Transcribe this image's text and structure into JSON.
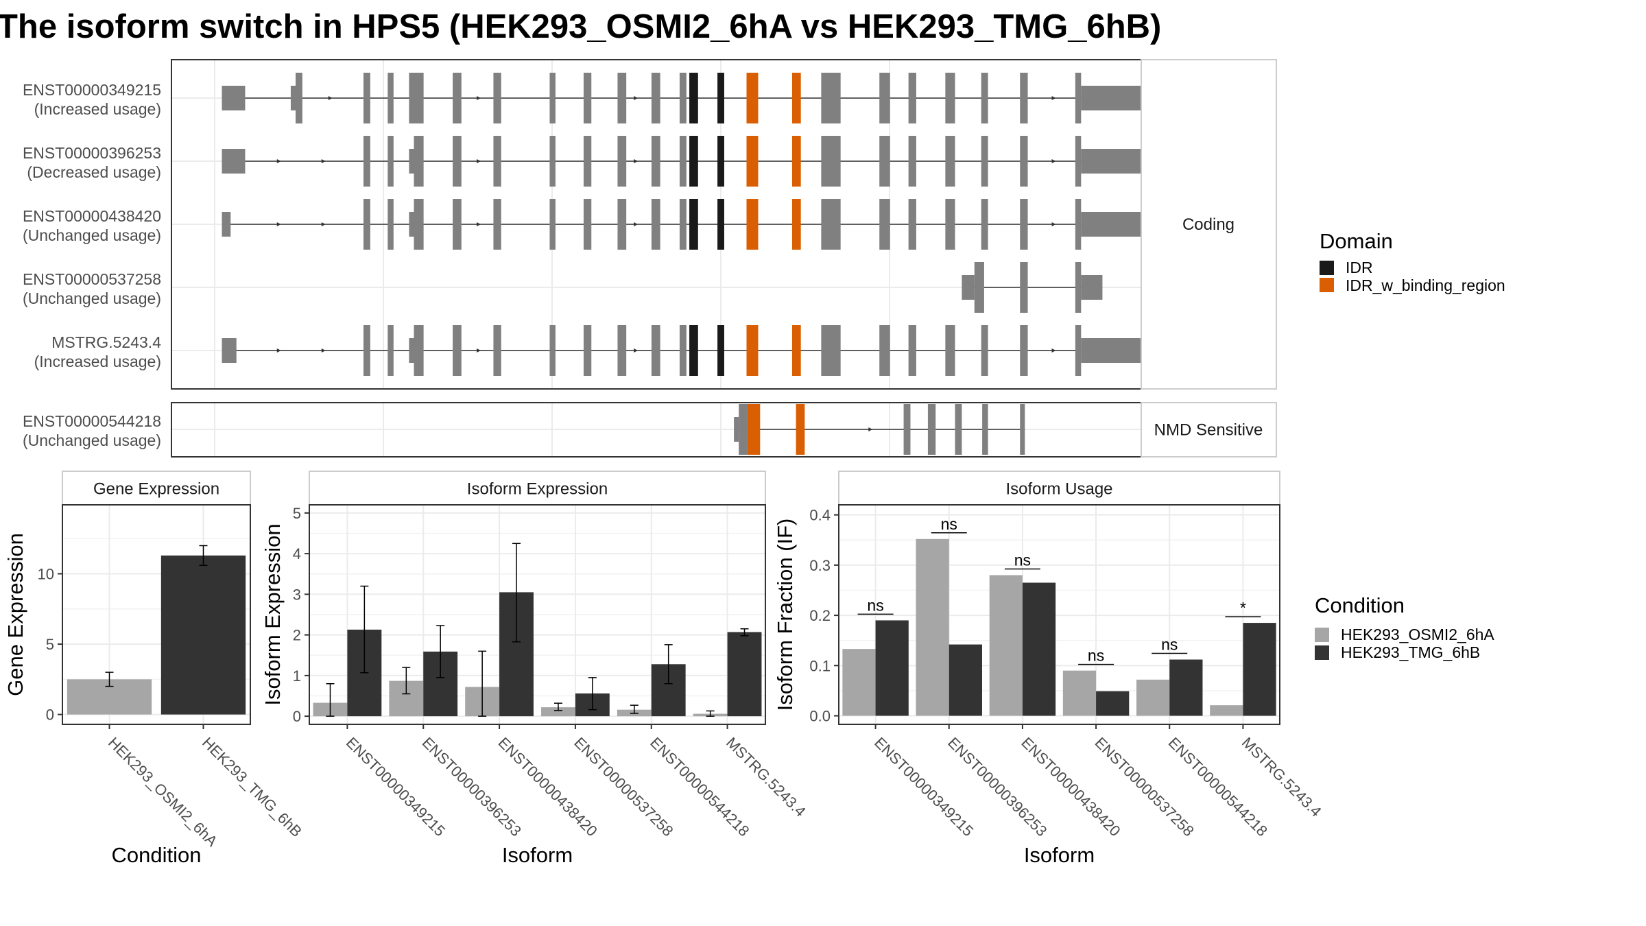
{
  "title": "The isoform switch in HPS5 (HEK293_OSMI2_6hA vs HEK293_TMG_6hB)",
  "colors": {
    "exon": "#808080",
    "IDR": "#1a1a1a",
    "IDR_w_binding_region": "#d95f02",
    "cond1": "#a6a6a6",
    "cond2": "#333333",
    "grid": "#ebebeb",
    "panel_border": "#333333"
  },
  "structure": {
    "xrange": [
      0,
      1000
    ],
    "groups": [
      {
        "label": "Coding",
        "transcripts": [
          {
            "id": "ENST00000349215",
            "status": "(Increased usage)",
            "span": [
              52,
              1026
            ],
            "exons": [
              [
                52,
                76,
                "u"
              ],
              [
                123,
                128,
                "u"
              ],
              [
                128,
                135,
                "c"
              ],
              [
                198,
                205,
                "c"
              ],
              [
                223,
                229,
                "c"
              ],
              [
                245,
                260,
                "c"
              ],
              [
                290,
                299,
                "c"
              ],
              [
                332,
                340,
                "c"
              ],
              [
                390,
                396,
                "c"
              ],
              [
                425,
                433,
                "c"
              ],
              [
                460,
                469,
                "c"
              ],
              [
                495,
                504,
                "c"
              ],
              [
                524,
                531,
                "c"
              ],
              [
                534,
                543,
                "IDR"
              ],
              [
                563,
                570,
                "IDR"
              ],
              [
                593,
                605,
                "IDR_w_binding_region"
              ],
              [
                640,
                649,
                "IDR_w_binding_region"
              ],
              [
                670,
                690,
                "c"
              ],
              [
                730,
                741,
                "c"
              ],
              [
                760,
                768,
                "c"
              ],
              [
                798,
                808,
                "c"
              ],
              [
                835,
                842,
                "c"
              ],
              [
                875,
                883,
                "c"
              ],
              [
                932,
                938,
                "c"
              ],
              [
                938,
                1026,
                "u"
              ]
            ],
            "arrows": [
              166,
              319,
              481,
              912
            ]
          },
          {
            "id": "ENST00000396253",
            "status": "(Decreased usage)",
            "span": [
              52,
              1028
            ],
            "exons": [
              [
                52,
                76,
                "u"
              ],
              [
                198,
                205,
                "c"
              ],
              [
                223,
                229,
                "c"
              ],
              [
                245,
                250,
                "u"
              ],
              [
                250,
                260,
                "c"
              ],
              [
                290,
                299,
                "c"
              ],
              [
                332,
                340,
                "c"
              ],
              [
                390,
                396,
                "c"
              ],
              [
                425,
                433,
                "c"
              ],
              [
                460,
                469,
                "c"
              ],
              [
                495,
                504,
                "c"
              ],
              [
                524,
                531,
                "c"
              ],
              [
                534,
                543,
                "IDR"
              ],
              [
                563,
                570,
                "IDR"
              ],
              [
                593,
                605,
                "IDR_w_binding_region"
              ],
              [
                640,
                649,
                "IDR_w_binding_region"
              ],
              [
                670,
                690,
                "c"
              ],
              [
                730,
                741,
                "c"
              ],
              [
                760,
                768,
                "c"
              ],
              [
                798,
                808,
                "c"
              ],
              [
                835,
                842,
                "c"
              ],
              [
                875,
                883,
                "c"
              ],
              [
                932,
                938,
                "c"
              ],
              [
                938,
                1028,
                "u"
              ]
            ],
            "arrows": [
              113,
              159,
              319,
              481,
              912
            ]
          },
          {
            "id": "ENST00000438420",
            "status": "(Unchanged usage)",
            "span": [
              52,
              1012
            ],
            "exons": [
              [
                52,
                61,
                "u"
              ],
              [
                198,
                205,
                "c"
              ],
              [
                223,
                229,
                "c"
              ],
              [
                245,
                250,
                "u"
              ],
              [
                250,
                260,
                "c"
              ],
              [
                290,
                299,
                "c"
              ],
              [
                332,
                340,
                "c"
              ],
              [
                390,
                396,
                "c"
              ],
              [
                425,
                433,
                "c"
              ],
              [
                460,
                469,
                "c"
              ],
              [
                495,
                504,
                "c"
              ],
              [
                524,
                531,
                "c"
              ],
              [
                534,
                543,
                "IDR"
              ],
              [
                563,
                570,
                "IDR"
              ],
              [
                593,
                605,
                "IDR_w_binding_region"
              ],
              [
                640,
                649,
                "IDR_w_binding_region"
              ],
              [
                670,
                690,
                "c"
              ],
              [
                730,
                741,
                "c"
              ],
              [
                760,
                768,
                "c"
              ],
              [
                798,
                808,
                "c"
              ],
              [
                835,
                842,
                "c"
              ],
              [
                875,
                883,
                "c"
              ],
              [
                932,
                938,
                "c"
              ],
              [
                938,
                1012,
                "u"
              ]
            ],
            "arrows": [
              113,
              159,
              319,
              481,
              912
            ]
          },
          {
            "id": "ENST00000537258",
            "status": "(Unchanged usage)",
            "span": [
              815,
              960
            ],
            "exons": [
              [
                815,
                828,
                "u"
              ],
              [
                828,
                838,
                "c"
              ],
              [
                875,
                883,
                "c"
              ],
              [
                932,
                938,
                "c"
              ],
              [
                938,
                960,
                "u"
              ]
            ],
            "arrows": []
          },
          {
            "id": "MSTRG.5243.4",
            "status": "(Increased usage)",
            "span": [
              52,
              1000
            ],
            "exons": [
              [
                52,
                67,
                "u"
              ],
              [
                198,
                205,
                "c"
              ],
              [
                223,
                229,
                "c"
              ],
              [
                245,
                250,
                "u"
              ],
              [
                250,
                260,
                "c"
              ],
              [
                290,
                299,
                "c"
              ],
              [
                332,
                340,
                "c"
              ],
              [
                390,
                396,
                "c"
              ],
              [
                425,
                433,
                "c"
              ],
              [
                460,
                469,
                "c"
              ],
              [
                495,
                504,
                "c"
              ],
              [
                524,
                531,
                "c"
              ],
              [
                534,
                543,
                "IDR"
              ],
              [
                563,
                570,
                "IDR"
              ],
              [
                593,
                605,
                "IDR_w_binding_region"
              ],
              [
                640,
                649,
                "IDR_w_binding_region"
              ],
              [
                670,
                690,
                "c"
              ],
              [
                730,
                741,
                "c"
              ],
              [
                760,
                768,
                "c"
              ],
              [
                798,
                808,
                "c"
              ],
              [
                835,
                842,
                "c"
              ],
              [
                875,
                883,
                "c"
              ],
              [
                932,
                938,
                "c"
              ],
              [
                938,
                1000,
                "u"
              ]
            ],
            "arrows": [
              113,
              159,
              319,
              481,
              912
            ]
          }
        ]
      },
      {
        "label": "NMD Sensitive",
        "transcripts": [
          {
            "id": "ENST00000544218",
            "status": "(Unchanged usage)",
            "span": [
              580,
              880
            ],
            "exons": [
              [
                580,
                585,
                "u"
              ],
              [
                585,
                594,
                "c"
              ],
              [
                594,
                607,
                "IDR_w_binding_region"
              ],
              [
                644,
                653,
                "IDR_w_binding_region"
              ],
              [
                755,
                762,
                "c"
              ],
              [
                780,
                788,
                "c"
              ],
              [
                808,
                815,
                "c"
              ],
              [
                836,
                842,
                "c"
              ],
              [
                875,
                880,
                "c"
              ]
            ],
            "arrows": [
              723
            ]
          }
        ]
      }
    ]
  },
  "legends": {
    "domain_title": "Domain",
    "domain_items": [
      "IDR",
      "IDR_w_binding_region"
    ],
    "condition_title": "Condition",
    "condition_items": [
      "HEK293_OSMI2_6hA",
      "HEK293_TMG_6hB"
    ]
  },
  "chart_data": [
    {
      "type": "bar",
      "title": "Gene Expression",
      "xlabel": "Condition",
      "ylabel": "Gene Expression",
      "categories": [
        "HEK293_OSMI2_6hA",
        "HEK293_TMG_6hB"
      ],
      "values": [
        2.5,
        11.3
      ],
      "error": [
        [
          2.0,
          3.0
        ],
        [
          10.6,
          12.0
        ]
      ],
      "ylim": [
        -0.7,
        14.9
      ],
      "yticks": [
        0,
        5,
        10
      ]
    },
    {
      "type": "bar",
      "title": "Isoform Expression",
      "xlabel": "Isoform",
      "ylabel": "Isoform Expression",
      "categories": [
        "ENST00000349215",
        "ENST00000396253",
        "ENST00000438420",
        "ENST00000537258",
        "ENST00000544218",
        "MSTRG.5243.4"
      ],
      "series": [
        {
          "name": "HEK293_OSMI2_6hA",
          "values": [
            0.33,
            0.87,
            0.72,
            0.22,
            0.16,
            0.06
          ],
          "error": [
            [
              0.0,
              0.8
            ],
            [
              0.55,
              1.2
            ],
            [
              0.0,
              1.6
            ],
            [
              0.14,
              0.32
            ],
            [
              0.07,
              0.27
            ],
            [
              0.0,
              0.13
            ]
          ]
        },
        {
          "name": "HEK293_TMG_6hB",
          "values": [
            2.13,
            1.59,
            3.05,
            0.56,
            1.28,
            2.07
          ],
          "error": [
            [
              1.07,
              3.2
            ],
            [
              0.95,
              2.23
            ],
            [
              1.83,
              4.25
            ],
            [
              0.16,
              0.95
            ],
            [
              0.8,
              1.76
            ],
            [
              1.98,
              2.15
            ]
          ]
        }
      ],
      "ylim": [
        -0.2,
        5.2
      ],
      "yticks": [
        0,
        1,
        2,
        3,
        4,
        5
      ]
    },
    {
      "type": "bar",
      "title": "Isoform Usage",
      "xlabel": "Isoform",
      "ylabel": "Isoform Fraction (IF)",
      "categories": [
        "ENST00000349215",
        "ENST00000396253",
        "ENST00000438420",
        "ENST00000537258",
        "ENST00000544218",
        "MSTRG.5243.4"
      ],
      "series": [
        {
          "name": "HEK293_OSMI2_6hA",
          "values": [
            0.133,
            0.352,
            0.28,
            0.09,
            0.072,
            0.021
          ]
        },
        {
          "name": "HEK293_TMG_6hB",
          "values": [
            0.19,
            0.142,
            0.265,
            0.049,
            0.112,
            0.185
          ]
        }
      ],
      "significance": [
        "ns",
        "ns",
        "ns",
        "ns",
        "ns",
        "*"
      ],
      "ylim": [
        -0.017,
        0.42
      ],
      "yticks": [
        0.0,
        0.1,
        0.2,
        0.3,
        0.4
      ],
      "yticklabels": [
        "0.0",
        "0.1",
        "0.2",
        "0.3",
        "0.4"
      ]
    }
  ]
}
